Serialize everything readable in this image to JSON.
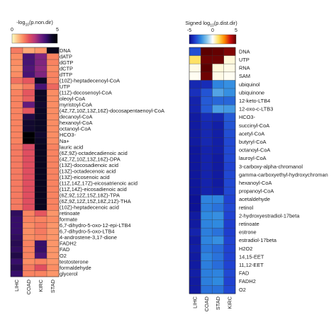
{
  "chart_data": [
    {
      "type": "heatmap",
      "scale": {
        "title": "-log10(p.non.dir)",
        "title_main": "-log",
        "title_sub": "10",
        "title_rest": "(p.non.dir)",
        "ticks": [
          "0",
          "5"
        ],
        "range": [
          0,
          5
        ],
        "colormap": "magma_r",
        "stops": [
          "#fcfdbf",
          "#fec287",
          "#fb8861",
          "#e24f5f",
          "#b73779",
          "#721f81",
          "#3b0f70",
          "#0c0826",
          "#000004"
        ]
      },
      "columns": [
        "LIHC",
        "COAD",
        "KIRC",
        "STAD"
      ],
      "rows": [
        "DNA",
        "dATP",
        "dGTP",
        "dCTP",
        "dTTP",
        "(10Z)-heptadecenoyl-CoA",
        "UTP",
        "(11Z)-docosenoyl-CoA",
        "oleoyl-CoA",
        "myristoyl-CoA",
        "(4Z,7Z,10Z,13Z,16Z)-docosapentaenoyl-CoA",
        "decanoyl-CoA",
        "hexanoyl-CoA",
        "octanoyl-CoA",
        "HCO3-",
        "Na+",
        "lauric acid",
        "(6Z,9Z)-octadecadienoic acid",
        "(4Z,7Z,10Z,13Z,16Z)-DPA",
        "(13Z)-docosadienoic acid",
        "(13Z)-octadecenoic acid",
        "(13Z)-eicosenoic acid",
        "(11Z,14Z,17Z)-eicosatrienoic acid",
        "(11Z,14Z)-eicosadienoic acid",
        "(6Z,9Z,12Z,15Z,18Z)-TPA",
        "(6Z,9Z,12Z,15Z,18Z,21Z)-THA",
        "(10Z)-heptadecenoic acid",
        "retinoate",
        "formate",
        "6,7-dihydro-5-oxo-12-epi-LTB4",
        "6,7-dihydro-5-oxo-LTB4",
        "4-androstene-3,17-dione",
        "FADH2",
        "FAD",
        "O2",
        "testosterone",
        "formaldehyde",
        "glycerol"
      ],
      "values": [
        [
          1.4,
          0.9,
          1.1,
          4.6
        ],
        [
          1.2,
          3.6,
          3.0,
          1.3
        ],
        [
          1.2,
          3.6,
          3.0,
          1.3
        ],
        [
          1.1,
          3.5,
          2.9,
          1.2
        ],
        [
          1.2,
          3.6,
          3.0,
          1.3
        ],
        [
          1.5,
          1.8,
          4.4,
          1.3
        ],
        [
          1.1,
          1.4,
          3.6,
          1.6
        ],
        [
          1.3,
          1.8,
          4.4,
          1.2
        ],
        [
          1.3,
          1.7,
          4.4,
          1.2
        ],
        [
          1.3,
          3.3,
          4.3,
          1.2
        ],
        [
          1.3,
          1.8,
          4.4,
          1.2
        ],
        [
          1.3,
          4.1,
          4.4,
          1.2
        ],
        [
          1.3,
          4.3,
          4.4,
          1.2
        ],
        [
          1.3,
          4.3,
          4.4,
          1.2
        ],
        [
          1.3,
          5.0,
          4.3,
          1.2
        ],
        [
          1.3,
          5.0,
          4.4,
          1.2
        ],
        [
          1.4,
          2.0,
          4.5,
          1.3
        ],
        [
          1.4,
          1.9,
          4.5,
          1.3
        ],
        [
          1.4,
          1.9,
          4.5,
          1.3
        ],
        [
          1.4,
          1.9,
          4.5,
          1.3
        ],
        [
          1.4,
          1.9,
          4.5,
          1.3
        ],
        [
          1.4,
          1.9,
          4.5,
          1.3
        ],
        [
          1.4,
          1.9,
          4.5,
          1.3
        ],
        [
          1.4,
          1.9,
          4.5,
          1.3
        ],
        [
          1.4,
          1.9,
          4.5,
          1.3
        ],
        [
          1.4,
          1.9,
          4.5,
          1.3
        ],
        [
          1.4,
          1.9,
          4.5,
          1.3
        ],
        [
          3.9,
          1.3,
          1.8,
          1.1
        ],
        [
          3.8,
          1.3,
          1.3,
          1.2
        ],
        [
          3.8,
          1.2,
          1.4,
          1.1
        ],
        [
          3.8,
          1.2,
          1.4,
          1.1
        ],
        [
          3.9,
          1.2,
          1.3,
          1.1
        ],
        [
          4.0,
          1.3,
          3.8,
          1.1
        ],
        [
          3.9,
          1.3,
          3.8,
          1.1
        ],
        [
          4.1,
          1.3,
          3.6,
          1.1
        ],
        [
          3.8,
          1.2,
          1.3,
          1.1
        ],
        [
          4.0,
          1.4,
          1.9,
          1.2
        ],
        [
          3.8,
          1.3,
          1.3,
          1.1
        ]
      ]
    },
    {
      "type": "heatmap",
      "scale": {
        "title": "Signed log10(p.dist.dir)",
        "title_main": "Signed log",
        "title_sub": "10",
        "title_rest": "(p.dist.dir)",
        "ticks": [
          "-5",
          "0",
          "5"
        ],
        "range": [
          -5,
          5
        ],
        "colormap": "diverging blue-white-red",
        "stops": [
          "#0a0a8a",
          "#1f3fd0",
          "#2f8ae0",
          "#88c8ec",
          "#ffffff",
          "#ffe060",
          "#ff8a00",
          "#cc1010",
          "#5c0000"
        ]
      },
      "columns": [
        "LIHC",
        "COAD",
        "STAD",
        "KIRC"
      ],
      "rows": [
        "DNA",
        "UTP",
        "RNA",
        "SAM",
        "ubiquinol",
        "ubiquinone",
        "12-keto-LTB4",
        "12-oxo-c-LTB3",
        "HCO3-",
        "succinyl-CoA",
        "acetyl-CoA",
        "butyryl-CoA",
        "octanoyl-CoA",
        "lauroyl-CoA",
        "3-carboxy-alpha-chromanol",
        "gamma-carboxyethyl-hydroxychroman",
        "hexanoyl-CoA",
        "propanoyl-CoA",
        "acetaldehyde",
        "retinol",
        "2-hydroxyestradiol-17beta",
        "retinoate",
        "estrone",
        "estradiol-17beta",
        "H2O2",
        "14,15-EET",
        "11,12-EET",
        "FAD",
        "FADH2",
        "O2"
      ],
      "values": [
        [
          -3.5,
          5.0,
          4.9,
          4.6
        ],
        [
          1.2,
          4.8,
          4.8,
          0.3
        ],
        [
          0.2,
          5.0,
          0.3,
          0.2
        ],
        [
          0.1,
          4.8,
          0.2,
          0.1
        ],
        [
          -4.3,
          -4.2,
          -2.6,
          -2.4
        ],
        [
          -4.1,
          -3.4,
          -2.0,
          -2.4
        ],
        [
          -4.4,
          -3.3,
          -3.1,
          -3.1
        ],
        [
          -4.4,
          -3.3,
          -2.1,
          -2.2
        ],
        [
          -4.6,
          -4.2,
          -4.3,
          -3.3
        ],
        [
          -4.6,
          -4.3,
          -4.5,
          -3.4
        ],
        [
          -4.6,
          -4.3,
          -4.5,
          -3.5
        ],
        [
          -4.6,
          -4.3,
          -4.5,
          -3.6
        ],
        [
          -4.7,
          -4.4,
          -4.5,
          -3.6
        ],
        [
          -4.7,
          -4.4,
          -4.6,
          -3.6
        ],
        [
          -4.7,
          -4.4,
          -4.6,
          -3.7
        ],
        [
          -4.7,
          -4.4,
          -4.6,
          -3.6
        ],
        [
          -4.7,
          -4.4,
          -4.6,
          -3.6
        ],
        [
          -4.7,
          -4.4,
          -4.5,
          -3.6
        ],
        [
          -4.8,
          -2.6,
          -2.6,
          -3.7
        ],
        [
          -4.8,
          -2.7,
          -2.9,
          -3.6
        ],
        [
          -4.6,
          -2.5,
          -2.4,
          -3.7
        ],
        [
          -4.6,
          -2.6,
          -2.5,
          -3.8
        ],
        [
          -4.4,
          -2.7,
          -2.9,
          -3.8
        ],
        [
          -4.6,
          -2.6,
          -2.4,
          -3.7
        ],
        [
          -4.5,
          -2.8,
          -3.0,
          -3.7
        ],
        [
          -4.6,
          -2.6,
          -2.9,
          -3.7
        ],
        [
          -4.6,
          -2.7,
          -3.0,
          -3.7
        ],
        [
          -4.5,
          -2.7,
          -2.6,
          -3.6
        ],
        [
          -4.6,
          -2.7,
          -2.5,
          -3.7
        ],
        [
          -4.6,
          -2.9,
          -2.9,
          -3.6
        ]
      ]
    }
  ]
}
